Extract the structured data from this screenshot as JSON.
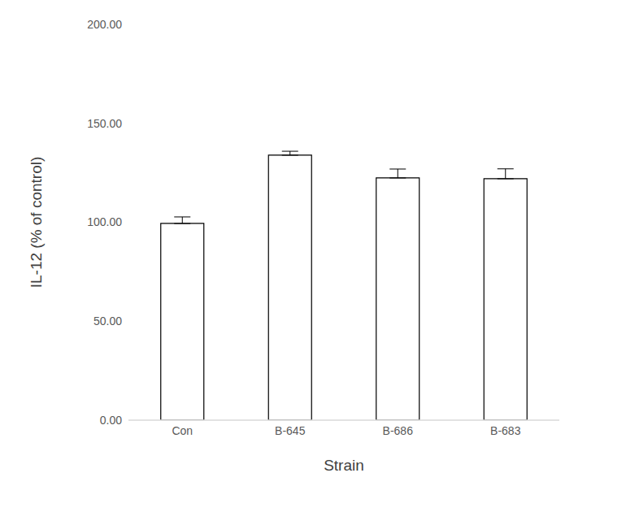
{
  "chart_data": {
    "type": "bar",
    "x_label": "Strain",
    "y_label": "IL-12 (% of control)",
    "categories": [
      "Con",
      "B-645",
      "B-686",
      "B-683"
    ],
    "values": [
      99.4,
      133.9,
      122.4,
      122.0
    ],
    "errors": [
      3.3,
      2.0,
      4.5,
      5.0
    ],
    "color": "#ffffff",
    "ylim": [
      0,
      200
    ],
    "yticks": [
      {
        "value": 0,
        "label": "0.00"
      },
      {
        "value": 50,
        "label": "50.00"
      },
      {
        "value": 100,
        "label": "100.00"
      },
      {
        "value": 150,
        "label": "150.00"
      },
      {
        "value": 200,
        "label": "200.00"
      }
    ],
    "grid": false
  }
}
